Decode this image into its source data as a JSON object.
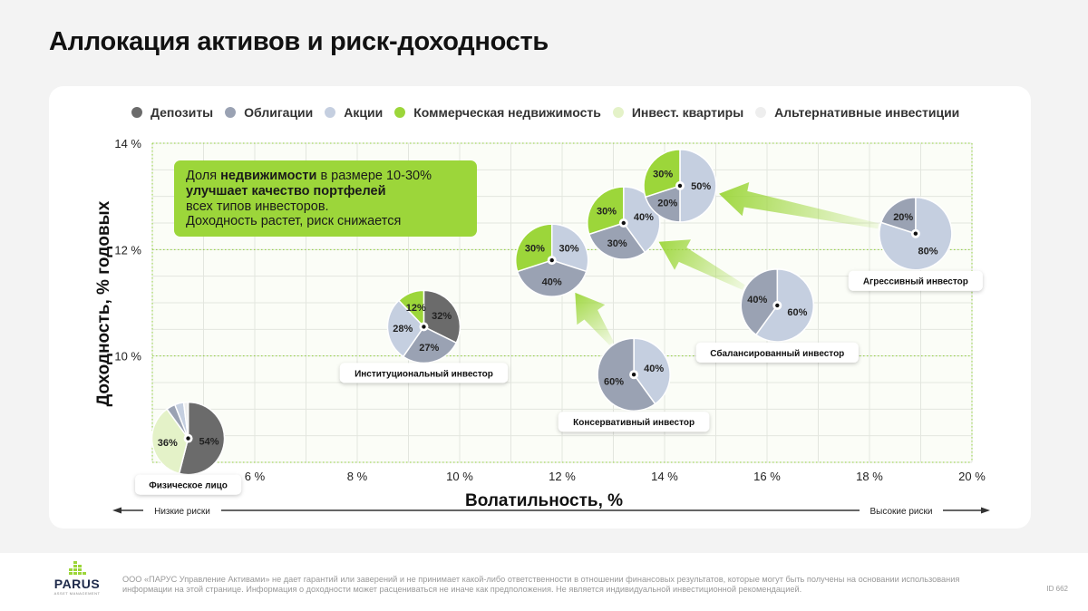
{
  "title": "Аллокация активов и риск-доходность",
  "legend": [
    {
      "label": "Депозиты",
      "color": "#6b6b6b"
    },
    {
      "label": "Облигации",
      "color": "#9aa2b3"
    },
    {
      "label": "Акции",
      "color": "#c5cfe0"
    },
    {
      "label": "Коммерческая недвижимость",
      "color": "#9cd63a"
    },
    {
      "label": "Инвест. квартиры",
      "color": "#e4f2c8"
    },
    {
      "label": "Альтернативные инвестиции",
      "color": "#eeeeee"
    }
  ],
  "chart_data": {
    "type": "scatter-pie",
    "xlabel": "Волатильность, %",
    "ylabel": "Доходность, % годовых",
    "xlim": [
      4,
      20
    ],
    "ylim": [
      8,
      14
    ],
    "x_ticks": [
      "6 %",
      "8 %",
      "10 %",
      "12 %",
      "14 %",
      "16 %",
      "18 %",
      "20 %"
    ],
    "y_ticks": [
      "14 %",
      "12 %",
      "10 %"
    ],
    "grid": true,
    "low_risk_label": "Низкие риски",
    "high_risk_label": "Высокие риски",
    "callout": {
      "line1_prefix": "Доля ",
      "line1_bold": "недвижимости",
      "line1_suffix": " в размере 10-30%",
      "line2": "улучшает качество портфелей",
      "line3": "всех типов инвесторов.",
      "line4": "Доходность растет, риск снижается"
    },
    "portfolios": [
      {
        "id": "physical",
        "label": "Физическое лицо",
        "x": 4.7,
        "y": 8.45,
        "slices": [
          {
            "asset": "Депозиты",
            "value": 54,
            "label": "54%"
          },
          {
            "asset": "Инвест. квартиры",
            "value": 36,
            "label": "36%"
          },
          {
            "asset": "Облигации",
            "value": 4,
            "label": ""
          },
          {
            "asset": "Акции",
            "value": 4,
            "label": ""
          },
          {
            "asset": "Альтернативные инвестиции",
            "value": 2,
            "label": ""
          }
        ]
      },
      {
        "id": "institutional",
        "label": "Институциональный инвестор",
        "x": 9.3,
        "y": 10.55,
        "slices": [
          {
            "asset": "Депозиты",
            "value": 32,
            "label": "32%"
          },
          {
            "asset": "Облигации",
            "value": 27,
            "label": "27%"
          },
          {
            "asset": "Акции",
            "value": 28,
            "label": "28%"
          },
          {
            "asset": "Коммерческая недвижимость",
            "value": 12,
            "label": "12%"
          }
        ]
      },
      {
        "id": "conservative",
        "label": "Консервативный инвестор",
        "x": 13.4,
        "y": 9.65,
        "slices": [
          {
            "asset": "Акции",
            "value": 40,
            "label": "40%"
          },
          {
            "asset": "Облигации",
            "value": 60,
            "label": "60%"
          }
        ]
      },
      {
        "id": "conservative-re",
        "label": "",
        "x": 11.8,
        "y": 11.8,
        "slices": [
          {
            "asset": "Акции",
            "value": 30,
            "label": "30%"
          },
          {
            "asset": "Облигации",
            "value": 40,
            "label": "40%"
          },
          {
            "asset": "Коммерческая недвижимость",
            "value": 30,
            "label": "30%"
          }
        ]
      },
      {
        "id": "balanced",
        "label": "Сбалансированный инвестор",
        "x": 16.2,
        "y": 10.95,
        "slices": [
          {
            "asset": "Акции",
            "value": 60,
            "label": "60%"
          },
          {
            "asset": "Облигации",
            "value": 40,
            "label": "40%"
          }
        ]
      },
      {
        "id": "balanced-re",
        "label": "",
        "x": 13.2,
        "y": 12.5,
        "slices": [
          {
            "asset": "Акции",
            "value": 40,
            "label": "40%"
          },
          {
            "asset": "Облигации",
            "value": 30,
            "label": "30%"
          },
          {
            "asset": "Коммерческая недвижимость",
            "value": 30,
            "label": "30%"
          }
        ]
      },
      {
        "id": "aggressive",
        "label": "Агрессивный инвестор",
        "x": 18.9,
        "y": 12.3,
        "slices": [
          {
            "asset": "Акции",
            "value": 80,
            "label": "80%"
          },
          {
            "asset": "Облигации",
            "value": 20,
            "label": "20%"
          }
        ]
      },
      {
        "id": "aggressive-re",
        "label": "",
        "x": 14.3,
        "y": 13.2,
        "slices": [
          {
            "asset": "Акции",
            "value": 50,
            "label": "50%"
          },
          {
            "asset": "Облигации",
            "value": 20,
            "label": "20%"
          },
          {
            "asset": "Коммерческая недвижимость",
            "value": 30,
            "label": "30%"
          }
        ]
      }
    ],
    "arrows": [
      {
        "from": "conservative",
        "to": "conservative-re"
      },
      {
        "from": "balanced",
        "to": "balanced-re"
      },
      {
        "from": "aggressive",
        "to": "aggressive-re"
      }
    ]
  },
  "footer": {
    "logo_text": "PARUS",
    "logo_sub": "ASSET MANAGEMENT",
    "disclaimer": "ООО «ПАРУС Управление Активами» не дает гарантий или заверений и не принимает какой-либо ответственности в отношении финансовых результатов, которые могут быть получены на основании использования информации на этой странице. Информация о доходности может расцениваться не иначе как предположения. Не является индивидуальной инвестиционной рекомендацией.",
    "doc_id": "ID 662"
  }
}
